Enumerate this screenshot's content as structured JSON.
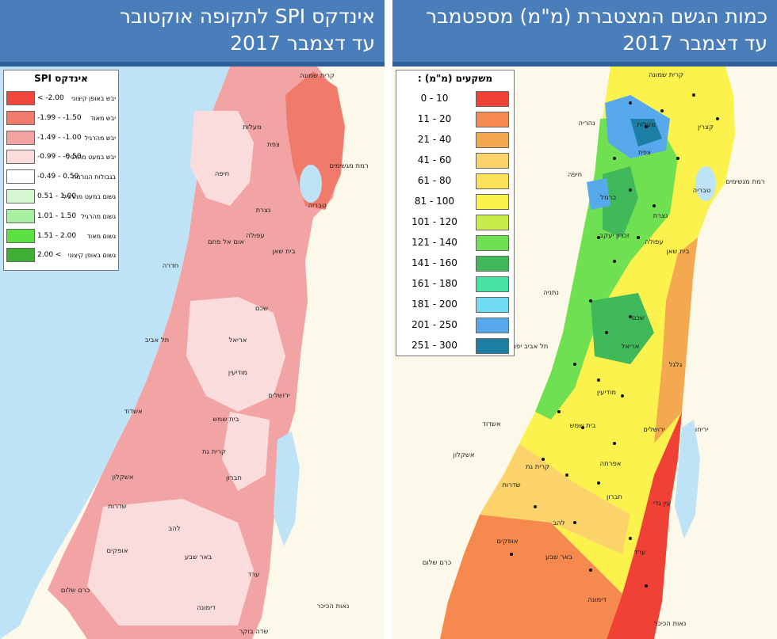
{
  "left_panel": {
    "title_line1": "אינדקס SPI לתקופה אוקטובר",
    "title_line2": "עד דצמבר 2017",
    "legend_title": "אינדקס SPI",
    "legend": [
      {
        "range": "< -2.00",
        "label": "יבש באופן קיצוני",
        "color": "#f0473d"
      },
      {
        "range": "-1.99 - -1.50",
        "label": "יבש מאוד",
        "color": "#f07b6a"
      },
      {
        "range": "-1.49 - -1.00",
        "label": "יבש מהרגיל",
        "color": "#f5a3a2"
      },
      {
        "range": "-0.99 - -0.50",
        "label": "יבש במעט מהרגיל",
        "color": "#fbdcdc"
      },
      {
        "range": "-0.49 - 0.50",
        "label": "בגבולות הנורמה",
        "color": "#ffffff"
      },
      {
        "range": "0.51 - 1.00",
        "label": "גשום במעט מהרגיל",
        "color": "#d7f7d2"
      },
      {
        "range": "1.01 - 1.50",
        "label": "גשום מהרגיל",
        "color": "#a8f0a0"
      },
      {
        "range": "1.51 - 2.00",
        "label": "גשום מאוד",
        "color": "#5be241"
      },
      {
        "range": "2.00 <",
        "label": "גשום באופן קיצוני",
        "color": "#3eae35"
      }
    ],
    "places": [
      "קרית שמונה",
      "מעלות",
      "צפת",
      "רמת מגשימים",
      "חיפה",
      "טבריה",
      "נצרת",
      "עפולה",
      "חדרה",
      "שכם",
      "אום אל פחם",
      "בית שאן",
      "תל אביב",
      "אריאל",
      "מודיעין",
      "ירושלים",
      "אשדוד",
      "בית שמש",
      "קרית גת",
      "אשקלון",
      "חברון",
      "שדרות",
      "להב",
      "אופקים",
      "באר שבע",
      "ערד",
      "כרם שלום",
      "דימונה",
      "נאות הכיכר",
      "שדה בוקר"
    ]
  },
  "right_panel": {
    "title_line1": "כמות הגשם המצטברת (מ\"מ) מספטמבר",
    "title_line2": "עד דצמבר 2017",
    "legend_title": "משקעים (מ\"מ) :",
    "legend": [
      {
        "range": "0 - 10",
        "color": "#ef4135"
      },
      {
        "range": "11 - 20",
        "color": "#f5894e"
      },
      {
        "range": "21 - 40",
        "color": "#f4a850"
      },
      {
        "range": "41 - 60",
        "color": "#fbd36a"
      },
      {
        "range": "61 - 80",
        "color": "#fde35a"
      },
      {
        "range": "81 - 100",
        "color": "#fbf24e"
      },
      {
        "range": "101 - 120",
        "color": "#c9eb4b"
      },
      {
        "range": "121 - 140",
        "color": "#6fe052"
      },
      {
        "range": "141 - 160",
        "color": "#3fb95a"
      },
      {
        "range": "161 - 180",
        "color": "#47e3a4"
      },
      {
        "range": "181 - 200",
        "color": "#6fdcf2"
      },
      {
        "range": "201 - 250",
        "color": "#57a9eb"
      },
      {
        "range": "251 - 300",
        "color": "#1c7ea3"
      }
    ],
    "places": [
      "קרית שמונה",
      "מעלות",
      "קצרין",
      "נהריה",
      "צפת",
      "רמת מגשימים",
      "חיפה",
      "טבריה",
      "כרמל",
      "נצרת",
      "עפולה",
      "זכרון יעקב",
      "בית שאן",
      "נתניה",
      "שכם",
      "תל אביב יפו",
      "אריאל",
      "גלגל",
      "מודיעין",
      "אשדוד",
      "ירושלים",
      "יריחו",
      "בית שמש",
      "אשקלון",
      "קרית גת",
      "אפרתה",
      "שדרות",
      "חברון",
      "עין גדי",
      "להב",
      "אופקים",
      "באר שבע",
      "ערד",
      "כרם שלום",
      "דימונה",
      "נאות הכיכר"
    ]
  }
}
